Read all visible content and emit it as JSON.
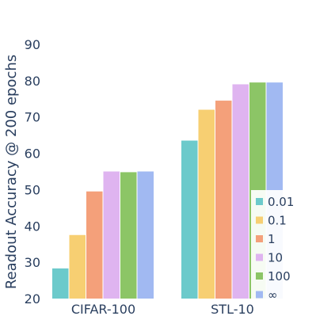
{
  "chart_data": {
    "type": "bar",
    "title": "",
    "xlabel": "",
    "ylabel": "Readout Accuracy @ 200 epochs",
    "ylim": [
      20,
      90
    ],
    "yticks": [
      20,
      30,
      40,
      50,
      60,
      70,
      80,
      90
    ],
    "grid": false,
    "legend_position": "bottom-right",
    "categories": [
      "CIFAR-100",
      "STL-10"
    ],
    "series": [
      {
        "name": "0.01",
        "color": "#6ccacb",
        "values": [
          28.3,
          63.5
        ]
      },
      {
        "name": "0.1",
        "color": "#f7cf72",
        "values": [
          37.5,
          72.0
        ]
      },
      {
        "name": "1",
        "color": "#f4a07a",
        "values": [
          49.5,
          74.5
        ]
      },
      {
        "name": "10",
        "color": "#dfb4f0",
        "values": [
          55.0,
          79.0
        ]
      },
      {
        "name": "100",
        "color": "#8cc566",
        "values": [
          54.8,
          79.5
        ]
      },
      {
        "name": "∞",
        "color": "#a1b9f2",
        "values": [
          55.0,
          79.5
        ]
      }
    ]
  }
}
